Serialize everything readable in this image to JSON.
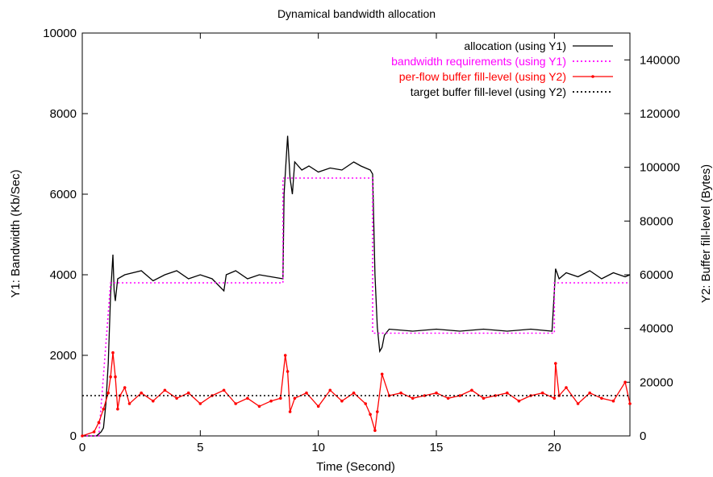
{
  "chart_data": {
    "type": "line",
    "title": "Dynamical bandwidth allocation",
    "xlabel": "Time (Second)",
    "ylabel": "Y1: Bandwidth (Kb/Sec)",
    "y2label": "Y2: Buffer fill-level (Bytes)",
    "xlim": [
      0,
      23.2
    ],
    "ylim": [
      0,
      10000
    ],
    "y2lim": [
      0,
      150000
    ],
    "x_ticks": [
      "0",
      "5",
      "10",
      "15",
      "20"
    ],
    "y_ticks": [
      "0",
      "2000",
      "4000",
      "6000",
      "8000",
      "10000"
    ],
    "y2_ticks": [
      "0",
      "20000",
      "40000",
      "60000",
      "80000",
      "100000",
      "120000",
      "140000"
    ],
    "grid": false,
    "legend_position": "top-right",
    "series": [
      {
        "name": "allocation (using Y1)",
        "axis": "y1",
        "color": "#000000",
        "style": "solid",
        "points": [
          [
            0,
            0
          ],
          [
            0.6,
            0
          ],
          [
            0.7,
            50
          ],
          [
            0.8,
            100
          ],
          [
            0.9,
            200
          ],
          [
            1.0,
            800
          ],
          [
            1.1,
            1800
          ],
          [
            1.2,
            3500
          ],
          [
            1.3,
            4500
          ],
          [
            1.35,
            3600
          ],
          [
            1.4,
            3350
          ],
          [
            1.5,
            3900
          ],
          [
            1.8,
            4000
          ],
          [
            2.5,
            4100
          ],
          [
            3,
            3850
          ],
          [
            3.5,
            4000
          ],
          [
            4,
            4100
          ],
          [
            4.5,
            3900
          ],
          [
            5,
            4000
          ],
          [
            5.5,
            3900
          ],
          [
            6,
            3600
          ],
          [
            6.1,
            4000
          ],
          [
            6.5,
            4100
          ],
          [
            7,
            3900
          ],
          [
            7.5,
            4000
          ],
          [
            8,
            3950
          ],
          [
            8.5,
            3900
          ],
          [
            8.55,
            6000
          ],
          [
            8.6,
            6500
          ],
          [
            8.7,
            7450
          ],
          [
            8.8,
            6400
          ],
          [
            8.9,
            6000
          ],
          [
            9.0,
            6800
          ],
          [
            9.3,
            6600
          ],
          [
            9.6,
            6700
          ],
          [
            10,
            6550
          ],
          [
            10.5,
            6650
          ],
          [
            11,
            6600
          ],
          [
            11.5,
            6800
          ],
          [
            11.8,
            6700
          ],
          [
            12.2,
            6600
          ],
          [
            12.3,
            6500
          ],
          [
            12.4,
            4000
          ],
          [
            12.5,
            2700
          ],
          [
            12.6,
            2100
          ],
          [
            12.7,
            2200
          ],
          [
            12.8,
            2500
          ],
          [
            13,
            2650
          ],
          [
            14,
            2600
          ],
          [
            15,
            2650
          ],
          [
            16,
            2600
          ],
          [
            17,
            2650
          ],
          [
            18,
            2600
          ],
          [
            19,
            2650
          ],
          [
            19.9,
            2600
          ],
          [
            20.0,
            3600
          ],
          [
            20.05,
            4150
          ],
          [
            20.2,
            3900
          ],
          [
            20.5,
            4050
          ],
          [
            21,
            3950
          ],
          [
            21.5,
            4100
          ],
          [
            22,
            3900
          ],
          [
            22.5,
            4050
          ],
          [
            23,
            3950
          ],
          [
            23.2,
            4000
          ]
        ]
      },
      {
        "name": "bandwidth requirements (using Y1)",
        "axis": "y1",
        "color": "#ff00ff",
        "style": "dotted",
        "points": [
          [
            0,
            0
          ],
          [
            0.7,
            0
          ],
          [
            1.2,
            3800
          ],
          [
            8.5,
            3800
          ],
          [
            8.5,
            6400
          ],
          [
            12.3,
            6400
          ],
          [
            12.3,
            2550
          ],
          [
            20.0,
            2550
          ],
          [
            20.0,
            3800
          ],
          [
            23.2,
            3800
          ]
        ]
      },
      {
        "name": "per-flow buffer fill-level (using Y2)",
        "axis": "y2",
        "color": "#ff0000",
        "style": "solid-with-points",
        "points": [
          [
            0,
            0
          ],
          [
            0.5,
            1500
          ],
          [
            0.7,
            5000
          ],
          [
            0.9,
            10000
          ],
          [
            1.1,
            16000
          ],
          [
            1.2,
            22000
          ],
          [
            1.3,
            31000
          ],
          [
            1.4,
            22000
          ],
          [
            1.5,
            10000
          ],
          [
            1.6,
            15000
          ],
          [
            1.8,
            18000
          ],
          [
            2.0,
            12000
          ],
          [
            2.5,
            16000
          ],
          [
            3,
            13000
          ],
          [
            3.5,
            17000
          ],
          [
            4,
            14000
          ],
          [
            4.5,
            16000
          ],
          [
            5,
            12000
          ],
          [
            5.5,
            15000
          ],
          [
            6,
            17000
          ],
          [
            6.5,
            12000
          ],
          [
            7,
            14000
          ],
          [
            7.5,
            11000
          ],
          [
            8,
            13000
          ],
          [
            8.4,
            14000
          ],
          [
            8.6,
            30000
          ],
          [
            8.7,
            24000
          ],
          [
            8.8,
            9000
          ],
          [
            9.0,
            14000
          ],
          [
            9.5,
            16000
          ],
          [
            10,
            11000
          ],
          [
            10.5,
            17000
          ],
          [
            11,
            13000
          ],
          [
            11.5,
            16000
          ],
          [
            12,
            12000
          ],
          [
            12.2,
            8000
          ],
          [
            12.4,
            2000
          ],
          [
            12.5,
            9000
          ],
          [
            12.7,
            23000
          ],
          [
            13,
            15000
          ],
          [
            13.5,
            16000
          ],
          [
            14,
            14000
          ],
          [
            14.5,
            15000
          ],
          [
            15,
            16000
          ],
          [
            15.5,
            14000
          ],
          [
            16,
            15000
          ],
          [
            16.5,
            17000
          ],
          [
            17,
            14000
          ],
          [
            17.5,
            15000
          ],
          [
            18,
            16000
          ],
          [
            18.5,
            13000
          ],
          [
            19,
            15000
          ],
          [
            19.5,
            16000
          ],
          [
            20,
            14000
          ],
          [
            20.05,
            27000
          ],
          [
            20.2,
            15000
          ],
          [
            20.5,
            18000
          ],
          [
            21,
            12000
          ],
          [
            21.5,
            16000
          ],
          [
            22,
            14000
          ],
          [
            22.5,
            13000
          ],
          [
            23,
            20000
          ],
          [
            23.2,
            12000
          ]
        ]
      },
      {
        "name": "target buffer fill-level (using Y2)",
        "axis": "y2",
        "color": "#000000",
        "style": "dotted",
        "points": [
          [
            0,
            15000
          ],
          [
            23.2,
            15000
          ]
        ]
      }
    ]
  }
}
